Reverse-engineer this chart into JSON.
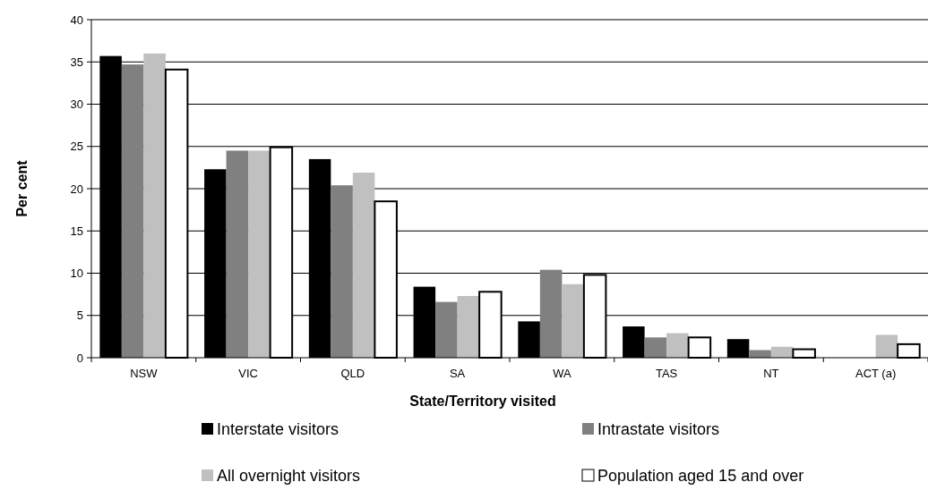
{
  "chart_data": {
    "type": "bar",
    "xlabel": "State/Territory visited",
    "ylabel": "Per cent",
    "categories": [
      "NSW",
      "VIC",
      "QLD",
      "SA",
      "WA",
      "TAS",
      "NT",
      "ACT (a)"
    ],
    "series": [
      {
        "name": "Interstate visitors",
        "color": "#000000",
        "values": [
          35.7,
          22.3,
          23.5,
          8.4,
          4.3,
          3.7,
          2.2,
          null
        ]
      },
      {
        "name": "Intrastate visitors",
        "color": "#808080",
        "values": [
          34.7,
          24.5,
          20.4,
          6.6,
          10.4,
          2.4,
          0.9,
          null
        ]
      },
      {
        "name": "All overnight visitors",
        "color": "#c0c0c0",
        "values": [
          36.0,
          24.5,
          21.9,
          7.3,
          8.7,
          2.9,
          1.3,
          2.7
        ]
      },
      {
        "name": "Population aged 15 and over",
        "color": "#ffffff",
        "values": [
          34.1,
          24.9,
          18.5,
          7.8,
          9.8,
          2.4,
          1.0,
          1.6
        ]
      }
    ],
    "ylim": [
      0,
      40
    ],
    "yticks": [
      0,
      5,
      10,
      15,
      20,
      25,
      30,
      35,
      40
    ],
    "grid": "y",
    "legend": "bottom"
  }
}
